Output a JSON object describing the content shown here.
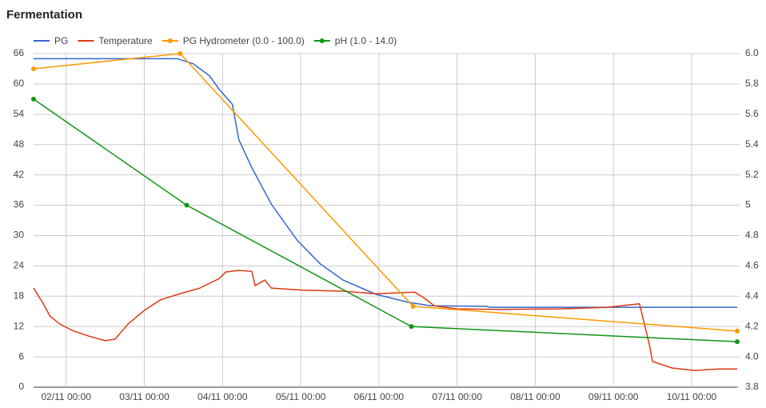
{
  "chart_data": {
    "type": "line",
    "title": "Fermentation",
    "grid": true,
    "xlim": [
      "01/11 14:00",
      "10/11 14:00"
    ],
    "xticks": [
      "02/11 00:00",
      "03/11 00:00",
      "04/11 00:00",
      "05/11 00:00",
      "06/11 00:00",
      "07/11 00:00",
      "08/11 00:00",
      "09/11 00:00",
      "10/11 00:00"
    ],
    "ylim": [
      0,
      66
    ],
    "yticks": [
      0,
      6,
      12,
      18,
      24,
      30,
      36,
      42,
      48,
      54,
      60,
      66
    ],
    "y2lim": [
      3.8,
      6.0
    ],
    "y2ticks": [
      3.8,
      {
        "value": 4.0,
        "label": "4.0"
      },
      4.2,
      4.4,
      4.6,
      4.8,
      5.0,
      5.2,
      5.4,
      5.6,
      5.8,
      {
        "value": 6.0,
        "label": "6.0"
      }
    ],
    "series": [
      {
        "name": "PG",
        "color": "#3366cc",
        "markers": false,
        "x": [
          "01/11 14:00",
          "03/11 10:00",
          "03/11 15:00",
          "03/11 20:00",
          "03/11 23:00",
          "04/11 03:00",
          "04/11 05:00",
          "04/11 09:00",
          "04/11 15:00",
          "04/11 23:00",
          "05/11 06:00",
          "05/11 13:00",
          "05/11 23:00",
          "06/11 09:00",
          "06/11 16:00",
          "07/11 09:00",
          "07/11 10:00",
          "10/11 14:00"
        ],
        "values": [
          65,
          65,
          64,
          61.6,
          58.9,
          56,
          49,
          43.4,
          36.2,
          29,
          24.4,
          21.2,
          18.4,
          16.8,
          16.1,
          16.0,
          15.8,
          15.8
        ]
      },
      {
        "name": "Temperature",
        "color": "#dc3912",
        "markers": false,
        "x": [
          "01/11 14:00",
          "01/11 17:00",
          "01/11 19:00",
          "01/11 22:00",
          "02/11 02:00",
          "02/11 07:00",
          "02/11 12:00",
          "02/11 15:00",
          "02/11 19:00",
          "03/11 00:00",
          "03/11 05:00",
          "03/11 11:00",
          "03/11 17:00",
          "03/11 23:00",
          "04/11 01:00",
          "04/11 05:00",
          "04/11 09:00",
          "04/11 10:00",
          "04/11 13:00",
          "04/11 15:00",
          "05/11 01:00",
          "05/11 13:00",
          "05/11 23:00",
          "06/11 11:00",
          "06/11 14:00",
          "06/11 17:00",
          "07/11 00:00",
          "07/11 12:00",
          "08/11 08:00",
          "08/11 22:00",
          "09/11 08:00",
          "09/11 11:00",
          "09/11 12:00",
          "09/11 18:00",
          "10/11 01:00",
          "10/11 08:00",
          "10/11 14:00"
        ],
        "values": [
          19.6,
          16.5,
          14.1,
          12.5,
          11.2,
          10.1,
          9.2,
          9.5,
          12.5,
          15.2,
          17.3,
          18.5,
          19.6,
          21.5,
          22.8,
          23.1,
          22.9,
          20.1,
          21.2,
          19.6,
          19.2,
          19.0,
          18.5,
          18.8,
          17.6,
          16.1,
          15.5,
          15.4,
          15.5,
          15.8,
          16.5,
          8.5,
          5.1,
          3.8,
          3.3,
          3.6,
          3.6
        ]
      },
      {
        "name": "PG Hydrometer (0.0 - 100.0)",
        "color": "#ff9900",
        "markers": true,
        "x": [
          "01/11 14:00",
          "03/11 11:00",
          "06/11 10:30",
          "10/11 14:00"
        ],
        "values": [
          63,
          66,
          16.0,
          11.1
        ]
      },
      {
        "name": "pH (1.0 - 14.0)",
        "color": "#109618",
        "markers": true,
        "axis": "y2",
        "x": [
          "01/11 14:00",
          "03/11 13:00",
          "06/11 10:00",
          "10/11 14:00"
        ],
        "values": [
          5.7,
          5.0,
          4.2,
          4.1
        ]
      }
    ]
  }
}
